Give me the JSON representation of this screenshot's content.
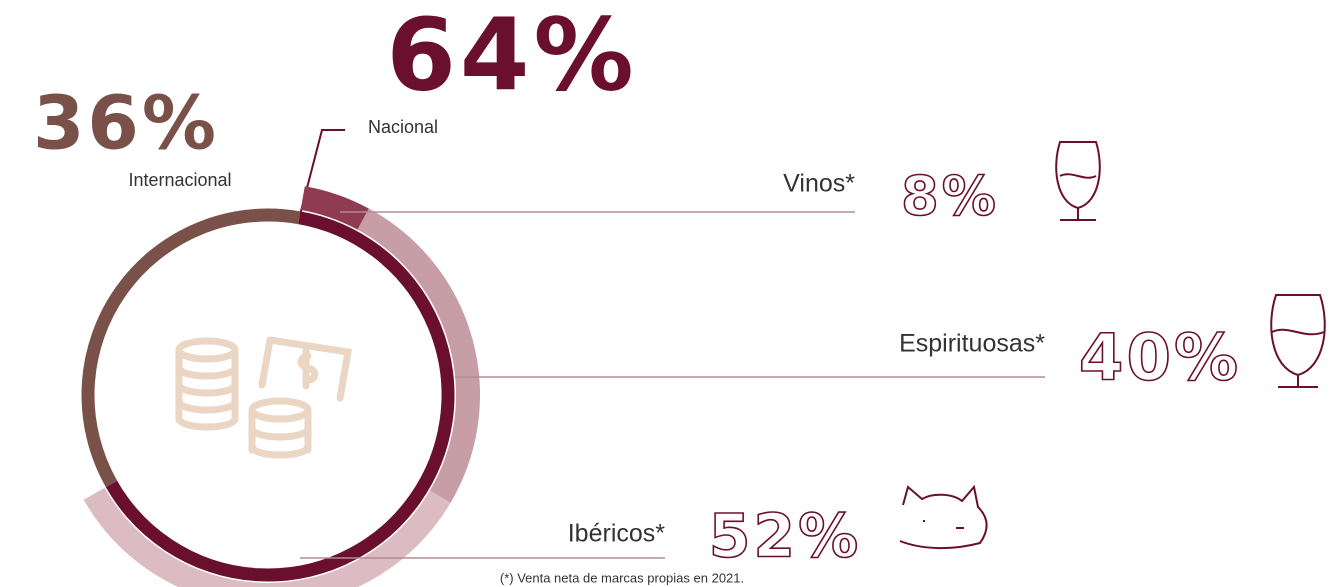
{
  "chart_data": [
    {
      "type": "donut",
      "categories": [
        "Internacional",
        "Nacional"
      ],
      "values": [
        36,
        64
      ],
      "value_labels": [
        "36%",
        "64%"
      ],
      "colors": [
        "#7a5148",
        "#6b0f2e"
      ]
    },
    {
      "type": "donut",
      "categories": [
        "Vinos*",
        "Espirituosas*",
        "Ibéricos*"
      ],
      "values": [
        8,
        40,
        52
      ],
      "value_labels": [
        "8%",
        "40%",
        "52%"
      ],
      "colors": [
        "#8f3c52",
        "#c79ea6",
        "#dcbcc2"
      ]
    }
  ],
  "footnote": "(*) Venta neta de marcas propias en 2021."
}
